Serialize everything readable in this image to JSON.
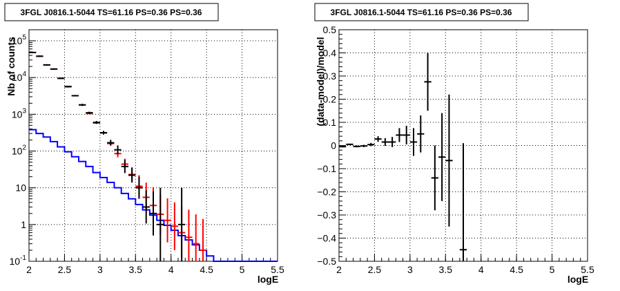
{
  "chart_data": [
    {
      "type": "line",
      "title": "3FGL J0816.1-5044 TS=61.16 PS=0.36 PS=0.36",
      "xlabel": "logE",
      "ylabel": "Nb of counts",
      "xlim": [
        2,
        5.5
      ],
      "ylim": [
        0.1,
        200000
      ],
      "yscale": "log",
      "grid": true,
      "x_ticks": [
        "2",
        "2.5",
        "3",
        "3.5",
        "4",
        "4.5",
        "5",
        "5.5"
      ],
      "y_ticks": [
        {
          "v": 0.1,
          "base": "10",
          "exp": "-1"
        },
        {
          "v": 1,
          "base": "1",
          "exp": ""
        },
        {
          "v": 10,
          "base": "10",
          "exp": ""
        },
        {
          "v": 100,
          "base": "10",
          "exp": "2"
        },
        {
          "v": 1000,
          "base": "10",
          "exp": "3"
        },
        {
          "v": 10000,
          "base": "10",
          "exp": "4"
        },
        {
          "v": 100000,
          "base": "10",
          "exp": "5"
        }
      ],
      "colors": {
        "model": "#ff0000",
        "data": "#000000",
        "background": "#0000ff"
      },
      "background_step": {
        "edges": [
          2.0,
          2.1,
          2.2,
          2.3,
          2.4,
          2.5,
          2.6,
          2.7,
          2.8,
          2.9,
          3.0,
          3.1,
          3.2,
          3.3,
          3.4,
          3.5,
          3.6,
          3.7,
          3.8,
          3.9,
          4.0,
          4.1,
          4.2,
          4.3,
          4.4,
          4.5,
          4.6,
          4.7,
          4.8,
          4.9,
          5.0,
          5.1,
          5.2,
          5.3,
          5.4,
          5.5
        ],
        "values": [
          380,
          300,
          240,
          180,
          130,
          95,
          70,
          52,
          38,
          26,
          19,
          14,
          10,
          7,
          5,
          3.5,
          2.5,
          1.8,
          1.3,
          0.95,
          0.7,
          0.5,
          0.38,
          0.28,
          0.2,
          0.14,
          0.1,
          0.1,
          0.1,
          0.1,
          0.1,
          0.1,
          0.1,
          0.1,
          0.1
        ]
      },
      "model_points": [
        {
          "x": 2.05,
          "y": 48000,
          "err": 0.02
        },
        {
          "x": 2.15,
          "y": 38000,
          "err": 0.02
        },
        {
          "x": 2.25,
          "y": 22000,
          "err": 0.02
        },
        {
          "x": 2.35,
          "y": 17000,
          "err": 0.02
        },
        {
          "x": 2.45,
          "y": 9500,
          "err": 0.02
        },
        {
          "x": 2.55,
          "y": 5600,
          "err": 0.02
        },
        {
          "x": 2.65,
          "y": 3200,
          "err": 0.02
        },
        {
          "x": 2.75,
          "y": 1800,
          "err": 0.02
        },
        {
          "x": 2.85,
          "y": 1050,
          "err": 0.02
        },
        {
          "x": 2.95,
          "y": 580,
          "err": 0.02
        },
        {
          "x": 3.05,
          "y": 310,
          "err": 0.03
        },
        {
          "x": 3.15,
          "y": 160,
          "err": 0.05
        },
        {
          "x": 3.25,
          "y": 85,
          "err": 0.1
        },
        {
          "x": 3.35,
          "y": 44,
          "err": 0.15
        },
        {
          "x": 3.45,
          "y": 23,
          "err": 0.2
        },
        {
          "x": 3.55,
          "y": 11,
          "err": 0.3
        },
        {
          "x": 3.65,
          "y": 5.5,
          "err": 0.4
        },
        {
          "x": 3.75,
          "y": 3.3,
          "err": 0.5
        },
        {
          "x": 3.85,
          "y": 1.9,
          "err": 0.55
        },
        {
          "x": 3.95,
          "y": 1.3,
          "err": 0.6
        },
        {
          "x": 4.05,
          "y": 0.9,
          "err": 0.65
        },
        {
          "x": 4.15,
          "y": 0.6,
          "err": 0.7
        },
        {
          "x": 4.25,
          "y": 0.45,
          "err": 0.75
        },
        {
          "x": 4.35,
          "y": 0.3,
          "err": 0.8
        },
        {
          "x": 4.45,
          "y": 0.2,
          "err": 0.85
        }
      ],
      "data_points": [
        {
          "x": 2.05,
          "y": 48000,
          "err": 0.02
        },
        {
          "x": 2.15,
          "y": 38000,
          "err": 0.02
        },
        {
          "x": 2.25,
          "y": 22000,
          "err": 0.02
        },
        {
          "x": 2.35,
          "y": 17000,
          "err": 0.02
        },
        {
          "x": 2.45,
          "y": 9500,
          "err": 0.02
        },
        {
          "x": 2.55,
          "y": 5700,
          "err": 0.02
        },
        {
          "x": 2.65,
          "y": 3200,
          "err": 0.02
        },
        {
          "x": 2.75,
          "y": 1800,
          "err": 0.03
        },
        {
          "x": 2.85,
          "y": 1100,
          "err": 0.03
        },
        {
          "x": 2.95,
          "y": 600,
          "err": 0.04
        },
        {
          "x": 3.05,
          "y": 315,
          "err": 0.05
        },
        {
          "x": 3.15,
          "y": 168,
          "err": 0.08
        },
        {
          "x": 3.25,
          "y": 108,
          "err": 0.12
        },
        {
          "x": 3.35,
          "y": 38,
          "err": 0.18
        },
        {
          "x": 3.45,
          "y": 22,
          "err": 0.2
        },
        {
          "x": 3.55,
          "y": 10,
          "err": 0.3
        },
        {
          "x": 3.65,
          "y": 3,
          "err": 0.45
        },
        {
          "x": 3.75,
          "y": 2,
          "err": 0.6
        },
        {
          "x": 3.85,
          "y": 1,
          "err": 1.0
        },
        {
          "x": 4.15,
          "y": 1,
          "err": 1.0
        }
      ]
    },
    {
      "type": "scatter",
      "title": "3FGL J0816.1-5044 TS=61.16 PS=0.36 PS=0.36",
      "xlabel": "logE",
      "ylabel": "(data-model)/model",
      "xlim": [
        2,
        5.5
      ],
      "ylim": [
        -0.5,
        0.5
      ],
      "grid": true,
      "x_ticks": [
        "2",
        "2.5",
        "3",
        "3.5",
        "4",
        "4.5",
        "5",
        "5.5"
      ],
      "y_ticks": [
        "0.5",
        "0.4",
        "0.3",
        "0.2",
        "0.1",
        "0",
        "−0.1",
        "−0.2",
        "−0.3",
        "−0.4",
        "−0.5"
      ],
      "points": [
        {
          "x": 2.05,
          "y": -0.005,
          "err": 0.003
        },
        {
          "x": 2.15,
          "y": 0.005,
          "err": 0.003
        },
        {
          "x": 2.25,
          "y": -0.004,
          "err": 0.004
        },
        {
          "x": 2.35,
          "y": -0.002,
          "err": 0.005
        },
        {
          "x": 2.45,
          "y": 0.004,
          "err": 0.007
        },
        {
          "x": 2.55,
          "y": 0.028,
          "err": 0.012
        },
        {
          "x": 2.65,
          "y": 0.015,
          "err": 0.017
        },
        {
          "x": 2.75,
          "y": 0.015,
          "err": 0.022
        },
        {
          "x": 2.85,
          "y": 0.045,
          "err": 0.03
        },
        {
          "x": 2.95,
          "y": 0.045,
          "err": 0.04
        },
        {
          "x": 3.05,
          "y": 0.015,
          "err": 0.06
        },
        {
          "x": 3.15,
          "y": 0.05,
          "err": 0.08
        },
        {
          "x": 3.25,
          "y": 0.275,
          "err": 0.125
        },
        {
          "x": 3.35,
          "y": -0.14,
          "err": 0.14
        },
        {
          "x": 3.45,
          "y": -0.05,
          "err": 0.19
        },
        {
          "x": 3.55,
          "y": -0.065,
          "err": 0.285
        },
        {
          "x": 3.75,
          "y": -0.45,
          "err": 0.46
        }
      ]
    }
  ]
}
